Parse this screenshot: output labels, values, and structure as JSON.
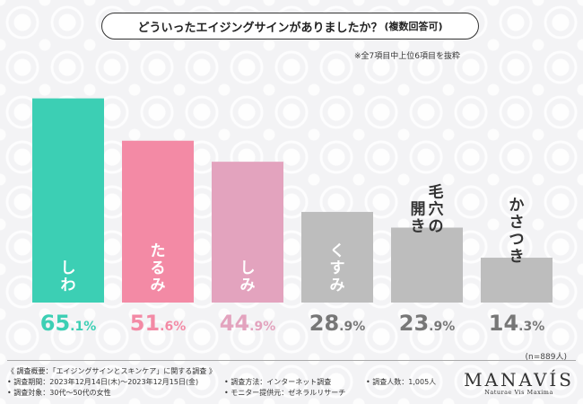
{
  "question": {
    "main": "どういったエイジングサインがありましたか？",
    "sub": "(複数回答可)"
  },
  "note": "※全7項目中上位6項目を抜粋",
  "chart_data": {
    "type": "bar",
    "categories": [
      "しわ",
      "たるみ",
      "しみ",
      "くすみ",
      "毛穴の開き",
      "かさつき"
    ],
    "category_lines": [
      [
        "しわ"
      ],
      [
        "たるみ"
      ],
      [
        "しみ"
      ],
      [
        "くすみ"
      ],
      [
        "毛穴の",
        "開き"
      ],
      [
        "かさつき"
      ]
    ],
    "values": [
      65.1,
      51.6,
      44.9,
      28.9,
      23.9,
      14.3
    ],
    "value_int_labels": [
      "65",
      "51",
      "44",
      "28",
      "23",
      "14"
    ],
    "value_dec_labels": [
      ".1%",
      ".6%",
      ".9%",
      ".9%",
      ".9%",
      ".3%"
    ],
    "bar_colors": [
      "#3ccfb4",
      "#f38aa5",
      "#e3a3be",
      "#bdbdbd",
      "#bdbdbd",
      "#bdbdbd"
    ],
    "value_colors": [
      "#3ccfb4",
      "#f38aa5",
      "#e3a3be",
      "#777777",
      "#777777",
      "#777777"
    ],
    "label_inside": [
      true,
      true,
      true,
      true,
      false,
      false
    ],
    "ylim": [
      0,
      75
    ],
    "title": "",
    "xlabel": "",
    "ylabel": ""
  },
  "n_label": "(n=889人)",
  "footer": {
    "survey_title": "《 調査概要：「エイジングサインとスキンケア」に関する調査 》",
    "period": "• 調査期間：2023年12月14日(木)〜2023年12月15日(金)",
    "target": "• 調査対象：30代〜50代の女性",
    "method": "• 調査方法：インターネット調査",
    "provider": "• モニター提供元：ゼネラルリサーチ",
    "count": "• 調査人数：1,005人"
  },
  "logo": {
    "word": "MANAVÍS",
    "tagline": "Naturae Vis Maxima"
  }
}
